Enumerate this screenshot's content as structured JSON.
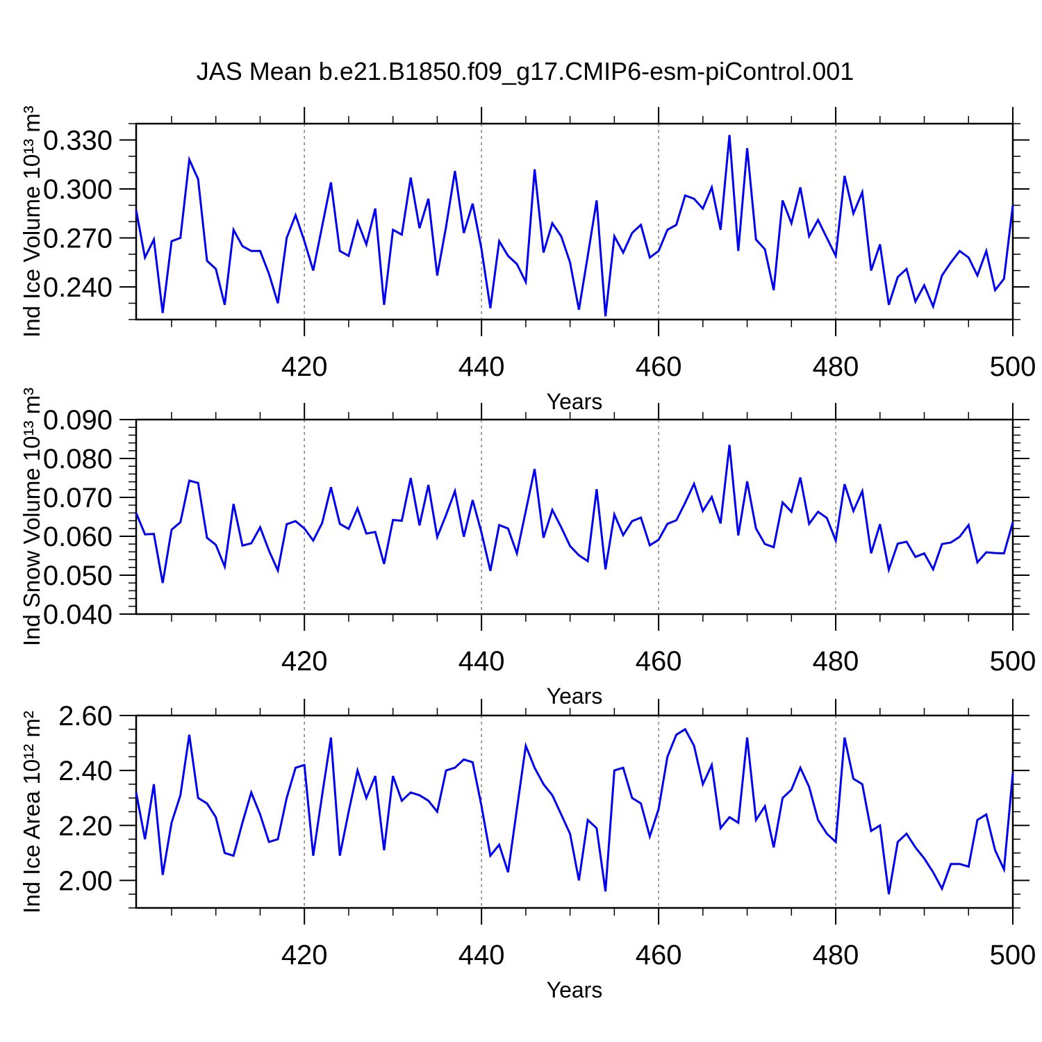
{
  "title": "JAS Mean b.e21.B1850.f09_g17.CMIP6-esm-piControl.001",
  "colors": {
    "line": "#0000ee",
    "grid": "#7f7f7f",
    "axis": "#000000",
    "background": "#ffffff"
  },
  "chart_data": [
    {
      "type": "line",
      "name": "ice-volume",
      "ylabel": "Ind Ice Volume 10¹³ m³",
      "xlabel": "Years",
      "x_start": 401,
      "x_end": 500,
      "xlim": [
        401,
        500
      ],
      "ylim": [
        0.22,
        0.34
      ],
      "yticks_major": [
        0.24,
        0.27,
        0.3,
        0.33
      ],
      "ytick_labels": [
        "0.240",
        "0.270",
        "0.300",
        "0.330"
      ],
      "ytick_minor_step": 0.01,
      "xticks_major": [
        420,
        440,
        460,
        480,
        500
      ],
      "xtick_labels": [
        "420",
        "440",
        "460",
        "480",
        "500"
      ],
      "xtick_minor_step": 5,
      "gridlines_x": [
        420,
        440,
        460,
        480
      ],
      "grid_style": "vertical-dashed",
      "legend": "none",
      "values": [
        0.287,
        0.258,
        0.269,
        0.224,
        0.268,
        0.27,
        0.318,
        0.306,
        0.256,
        0.251,
        0.229,
        0.275,
        0.265,
        0.262,
        0.262,
        0.248,
        0.23,
        0.27,
        0.284,
        0.268,
        0.25,
        0.277,
        0.304,
        0.262,
        0.259,
        0.28,
        0.266,
        0.288,
        0.229,
        0.275,
        0.272,
        0.307,
        0.276,
        0.294,
        0.247,
        0.277,
        0.311,
        0.273,
        0.291,
        0.263,
        0.227,
        0.268,
        0.259,
        0.254,
        0.243,
        0.312,
        0.261,
        0.279,
        0.271,
        0.255,
        0.226,
        0.259,
        0.293,
        0.222,
        0.271,
        0.261,
        0.273,
        0.278,
        0.258,
        0.262,
        0.275,
        0.278,
        0.296,
        0.294,
        0.288,
        0.301,
        0.275,
        0.333,
        0.262,
        0.325,
        0.269,
        0.263,
        0.238,
        0.293,
        0.279,
        0.301,
        0.271,
        0.281,
        0.27,
        0.259,
        0.308,
        0.285,
        0.298,
        0.25,
        0.266,
        0.229,
        0.246,
        0.251,
        0.231,
        0.241,
        0.228,
        0.247,
        0.255,
        0.262,
        0.258,
        0.247,
        0.262,
        0.238,
        0.245,
        0.29
      ]
    },
    {
      "type": "line",
      "name": "snow-volume",
      "ylabel": "Ind Snow Volume 10¹³ m³",
      "xlabel": "Years",
      "x_start": 401,
      "x_end": 500,
      "xlim": [
        401,
        500
      ],
      "ylim": [
        0.04,
        0.09
      ],
      "yticks_major": [
        0.04,
        0.05,
        0.06,
        0.07,
        0.08,
        0.09
      ],
      "ytick_labels": [
        "0.040",
        "0.050",
        "0.060",
        "0.070",
        "0.080",
        "0.090"
      ],
      "ytick_minor_step": 0.002,
      "xticks_major": [
        420,
        440,
        460,
        480,
        500
      ],
      "xtick_labels": [
        "420",
        "440",
        "460",
        "480",
        "500"
      ],
      "xtick_minor_step": 5,
      "gridlines_x": [
        420,
        440,
        460,
        480
      ],
      "grid_style": "vertical-dashed",
      "legend": "none",
      "values": [
        0.066,
        0.0605,
        0.0606,
        0.048,
        0.0617,
        0.0636,
        0.0743,
        0.0737,
        0.0596,
        0.0578,
        0.0522,
        0.0683,
        0.0576,
        0.0582,
        0.0623,
        0.0563,
        0.0512,
        0.0631,
        0.0639,
        0.062,
        0.0589,
        0.0634,
        0.0726,
        0.0632,
        0.0619,
        0.0672,
        0.0607,
        0.0611,
        0.0529,
        0.0642,
        0.064,
        0.075,
        0.0628,
        0.0732,
        0.0598,
        0.0655,
        0.0716,
        0.0599,
        0.0693,
        0.0609,
        0.0511,
        0.0629,
        0.062,
        0.0556,
        0.0665,
        0.0773,
        0.0596,
        0.0668,
        0.0623,
        0.0575,
        0.0551,
        0.0536,
        0.0721,
        0.0515,
        0.0656,
        0.0603,
        0.0639,
        0.0648,
        0.0577,
        0.0591,
        0.0632,
        0.0641,
        0.0686,
        0.0735,
        0.0665,
        0.0701,
        0.0633,
        0.0835,
        0.0602,
        0.0741,
        0.062,
        0.058,
        0.0572,
        0.0687,
        0.0663,
        0.0751,
        0.0632,
        0.0663,
        0.0647,
        0.0589,
        0.0734,
        0.0665,
        0.0716,
        0.0556,
        0.0631,
        0.0514,
        0.0581,
        0.0586,
        0.0547,
        0.0556,
        0.0515,
        0.058,
        0.0584,
        0.0599,
        0.0629,
        0.0533,
        0.0559,
        0.0557,
        0.0556,
        0.0636
      ]
    },
    {
      "type": "line",
      "name": "ice-area",
      "ylabel": "Ind Ice Area 10¹² m²",
      "xlabel": "Years",
      "x_start": 401,
      "x_end": 500,
      "xlim": [
        401,
        500
      ],
      "ylim": [
        1.9,
        2.6
      ],
      "yticks_major": [
        2.0,
        2.2,
        2.4,
        2.6
      ],
      "ytick_labels": [
        "2.00",
        "2.20",
        "2.40",
        "2.60"
      ],
      "ytick_minor_step": 0.05,
      "xticks_major": [
        420,
        440,
        460,
        480,
        500
      ],
      "xtick_labels": [
        "420",
        "440",
        "460",
        "480",
        "500"
      ],
      "xtick_minor_step": 5,
      "gridlines_x": [
        420,
        440,
        460,
        480
      ],
      "grid_style": "vertical-dashed",
      "legend": "none",
      "values": [
        2.32,
        2.15,
        2.35,
        2.02,
        2.21,
        2.31,
        2.53,
        2.3,
        2.28,
        2.23,
        2.1,
        2.09,
        2.21,
        2.32,
        2.24,
        2.14,
        2.15,
        2.3,
        2.41,
        2.42,
        2.09,
        2.31,
        2.52,
        2.09,
        2.25,
        2.4,
        2.3,
        2.38,
        2.11,
        2.38,
        2.29,
        2.32,
        2.31,
        2.29,
        2.25,
        2.4,
        2.41,
        2.44,
        2.43,
        2.27,
        2.09,
        2.13,
        2.03,
        2.26,
        2.49,
        2.41,
        2.35,
        2.31,
        2.24,
        2.17,
        2.0,
        2.22,
        2.19,
        1.96,
        2.4,
        2.41,
        2.3,
        2.28,
        2.16,
        2.26,
        2.45,
        2.53,
        2.55,
        2.49,
        2.35,
        2.42,
        2.19,
        2.23,
        2.21,
        2.52,
        2.22,
        2.27,
        2.12,
        2.3,
        2.33,
        2.41,
        2.34,
        2.22,
        2.17,
        2.14,
        2.52,
        2.37,
        2.35,
        2.18,
        2.2,
        1.95,
        2.14,
        2.17,
        2.12,
        2.08,
        2.03,
        1.97,
        2.06,
        2.06,
        2.05,
        2.22,
        2.24,
        2.11,
        2.04,
        2.39
      ]
    }
  ]
}
